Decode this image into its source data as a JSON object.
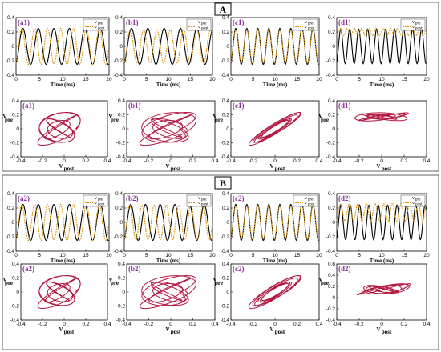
{
  "colors": {
    "pre": "#000000",
    "post": "#e0960b",
    "phase": "#b3173f",
    "panel_label": "#8a2f9e"
  },
  "sections": [
    {
      "id": "A",
      "label": "A"
    },
    {
      "id": "B",
      "label": "B"
    }
  ],
  "chart_data": [
    {
      "id": "a1-time",
      "type": "line",
      "panel_label": "(a1)",
      "xlabel": "Time (ms)",
      "xlim": [
        0,
        20
      ],
      "ylim": [
        -0.4,
        0.4
      ],
      "xticks": [
        "0",
        "5",
        "10",
        "15",
        "20"
      ],
      "yticks": [
        "0.4",
        "0.2",
        "0",
        "-0.2",
        "-0.4"
      ],
      "legend": [
        "V",
        "V"
      ],
      "legend_subscripts": [
        "pre",
        "post"
      ],
      "series": [
        {
          "freq": 0.3,
          "amp": 0.25,
          "offset": 0.0
        },
        {
          "freq": 0.36,
          "amp": 0.25,
          "offset": 0.0
        }
      ]
    },
    {
      "id": "b1-time",
      "type": "line",
      "panel_label": "(b1)",
      "xlabel": "Time (ms)",
      "xlim": [
        0,
        20
      ],
      "ylim": [
        -0.4,
        0.4
      ],
      "xticks": [
        "0",
        "5",
        "10",
        "15",
        "20"
      ],
      "yticks": [
        "0.4",
        "0.2",
        "0",
        "-0.2",
        "-0.4"
      ],
      "legend": [
        "V",
        "V"
      ],
      "legend_subscripts": [
        "pre",
        "post"
      ],
      "series": [
        {
          "freq": 0.27,
          "amp": 0.25,
          "offset": 0.0
        },
        {
          "freq": 0.33,
          "amp": 0.23,
          "offset": 0.0
        }
      ]
    },
    {
      "id": "c1-time",
      "type": "line",
      "panel_label": "(c1)",
      "xlabel": "Time (ms)",
      "xlim": [
        0,
        20
      ],
      "ylim": [
        -0.4,
        0.4
      ],
      "xticks": [
        "0",
        "5",
        "10",
        "15",
        "20"
      ],
      "yticks": [
        "0.4",
        "0.2",
        "0",
        "-0.2",
        "-0.4"
      ],
      "legend": [
        "V",
        "V"
      ],
      "legend_subscripts": [
        "pre",
        "post"
      ],
      "series": [
        {
          "freq": 0.4,
          "amp": 0.25,
          "offset": 0.0
        },
        {
          "freq": 0.4,
          "amp": 0.23,
          "offset": 0.0
        }
      ]
    },
    {
      "id": "d1-time",
      "type": "line",
      "panel_label": "(d1)",
      "xlabel": "Time (ms)",
      "xlim": [
        0,
        20
      ],
      "ylim": [
        -0.4,
        0.4
      ],
      "xticks": [
        "0",
        "5",
        "10",
        "15",
        "20"
      ],
      "yticks": [
        "0.4",
        "0.2",
        "0",
        "-0.2",
        "-0.4"
      ],
      "legend": [
        "V",
        "V"
      ],
      "legend_subscripts": [
        "pre",
        "post"
      ],
      "series": [
        {
          "freq": 0.5,
          "amp": 0.24,
          "offset": 0.0
        },
        {
          "freq": 0.62,
          "amp": 0.05,
          "offset": 0.2
        }
      ]
    },
    {
      "id": "a1-phase",
      "type": "line",
      "panel_label": "(a1)",
      "xlabel": "V",
      "xlabel_sub": "post",
      "ylabel": "V",
      "ylabel_sub": "pre",
      "xlim": [
        -0.4,
        0.4
      ],
      "ylim": [
        -0.4,
        0.4
      ],
      "xticks": [
        "-0.4",
        "-0.2",
        "0",
        "0.2",
        "0.4"
      ],
      "yticks": [
        "0.4",
        "0.2",
        "0",
        "-0.2",
        "-0.4"
      ],
      "curve": {
        "ax": 0.2,
        "ay": 0.24,
        "fx": 1.2,
        "fy": 1.0,
        "ph": 0.9,
        "cx": -0.05,
        "cy": 0.0,
        "turns": 6
      }
    },
    {
      "id": "b1-phase",
      "type": "line",
      "panel_label": "(b1)",
      "xlabel": "V",
      "xlabel_sub": "post",
      "ylabel": "V",
      "ylabel_sub": "pre",
      "xlim": [
        -0.4,
        0.4
      ],
      "ylim": [
        -0.4,
        0.4
      ],
      "xticks": [
        "-0.4",
        "-0.2",
        "0",
        "0.2",
        "0.4"
      ],
      "yticks": [
        "0.4",
        "0.2",
        "0",
        "-0.2",
        "-0.4"
      ],
      "curve": {
        "ax": 0.26,
        "ay": 0.24,
        "fx": 1.22,
        "fy": 1.0,
        "ph": 0.5,
        "cx": -0.03,
        "cy": 0.0,
        "turns": 6
      }
    },
    {
      "id": "c1-phase",
      "type": "line",
      "panel_label": "(c1)",
      "xlabel": "V",
      "xlabel_sub": "post",
      "ylabel": "V",
      "ylabel_sub": "pre",
      "xlim": [
        -0.4,
        0.4
      ],
      "ylim": [
        -0.4,
        0.4
      ],
      "xticks": [
        "-0.4",
        "-0.2",
        "0",
        "0.2",
        "0.4"
      ],
      "yticks": [
        "0.4",
        "0.2",
        "0",
        "-0.2",
        "-0.4"
      ],
      "curve": {
        "ax": 0.24,
        "ay": 0.24,
        "fx": 1.0,
        "fy": 1.0,
        "ph": 0.35,
        "cx": 0.0,
        "cy": 0.0,
        "turns": 6
      }
    },
    {
      "id": "d1-phase",
      "type": "line",
      "panel_label": "(d1)",
      "xlabel": "V",
      "xlabel_sub": "post",
      "ylabel": "V",
      "ylabel_sub": "pre",
      "xlim": [
        -0.4,
        0.4
      ],
      "ylim": [
        -0.4,
        0.4
      ],
      "xticks": [
        "-0.4",
        "-0.2",
        "0",
        "0.2",
        "0.4"
      ],
      "yticks": [
        "0.4",
        "0.2",
        "0",
        "-0.2",
        "-0.4"
      ],
      "curve": {
        "ax": 0.24,
        "ay": 0.06,
        "fx": 1.0,
        "fy": 1.25,
        "ph": 0.7,
        "cx": 0.0,
        "cy": 0.17,
        "turns": 6
      }
    },
    {
      "id": "a2-time",
      "type": "line",
      "panel_label": "(a2)",
      "xlabel": "Time (ms)",
      "xlim": [
        0,
        20
      ],
      "ylim": [
        -0.4,
        0.4
      ],
      "xticks": [
        "0",
        "5",
        "10",
        "15",
        "20"
      ],
      "yticks": [
        "0.4",
        "0.2",
        "0",
        "-0.2",
        "-0.4"
      ],
      "legend": [
        "V",
        "V"
      ],
      "legend_subscripts": [
        "pre",
        "post"
      ],
      "series": [
        {
          "freq": 0.3,
          "amp": 0.25,
          "offset": 0.0
        },
        {
          "freq": 0.36,
          "amp": 0.25,
          "offset": 0.0
        }
      ]
    },
    {
      "id": "b2-time",
      "type": "line",
      "panel_label": "(b2)",
      "xlabel": "Time (ms)",
      "xlim": [
        0,
        20
      ],
      "ylim": [
        -0.4,
        0.4
      ],
      "xticks": [
        "0",
        "5",
        "10",
        "15",
        "20"
      ],
      "yticks": [
        "0.4",
        "0.2",
        "0",
        "-0.2",
        "-0.4"
      ],
      "legend": [
        "V",
        "V"
      ],
      "legend_subscripts": [
        "pre",
        "post"
      ],
      "series": [
        {
          "freq": 0.3,
          "amp": 0.25,
          "offset": 0.0
        },
        {
          "freq": 0.36,
          "amp": 0.24,
          "offset": 0.0
        }
      ]
    },
    {
      "id": "c2-time",
      "type": "line",
      "panel_label": "(c2)",
      "xlabel": "Time (ms)",
      "xlim": [
        0,
        20
      ],
      "ylim": [
        -0.4,
        0.4
      ],
      "xticks": [
        "0",
        "5",
        "10",
        "15",
        "20"
      ],
      "yticks": [
        "0.4",
        "0.2",
        "0",
        "-0.2",
        "-0.4"
      ],
      "legend": [
        "V",
        "V"
      ],
      "legend_subscripts": [
        "pre",
        "post"
      ],
      "series": [
        {
          "freq": 0.4,
          "amp": 0.25,
          "offset": 0.0
        },
        {
          "freq": 0.4,
          "amp": 0.23,
          "offset": 0.0
        }
      ]
    },
    {
      "id": "d2-time",
      "type": "line",
      "panel_label": "(d2)",
      "xlabel": "Time (ms)",
      "xlim": [
        0,
        20
      ],
      "ylim": [
        -0.4,
        0.4
      ],
      "xticks": [
        "0",
        "5",
        "10",
        "15",
        "20"
      ],
      "yticks": [
        "0.4",
        "0.2",
        "0",
        "-0.2",
        "-0.4"
      ],
      "legend": [
        "V",
        "V"
      ],
      "legend_subscripts": [
        "pre",
        "post"
      ],
      "series": [
        {
          "freq": 0.48,
          "amp": 0.24,
          "offset": 0.0
        },
        {
          "freq": 0.52,
          "amp": 0.12,
          "offset": 0.14
        }
      ]
    },
    {
      "id": "a2-phase",
      "type": "line",
      "panel_label": "(a2)",
      "xlabel": "V",
      "xlabel_sub": "post",
      "ylabel": "V",
      "ylabel_sub": "pre",
      "xlim": [
        -0.4,
        0.4
      ],
      "ylim": [
        -0.4,
        0.4
      ],
      "xticks": [
        "-0.4",
        "-0.2",
        "0",
        "0.2",
        "0.4"
      ],
      "yticks": [
        "0.4",
        "0.2",
        "0",
        "-0.2",
        "-0.4"
      ],
      "curve": {
        "ax": 0.2,
        "ay": 0.24,
        "fx": 1.2,
        "fy": 1.0,
        "ph": 0.9,
        "cx": -0.05,
        "cy": 0.0,
        "turns": 6
      }
    },
    {
      "id": "b2-phase",
      "type": "line",
      "panel_label": "(b2)",
      "xlabel": "V",
      "xlabel_sub": "post",
      "ylabel": "V",
      "ylabel_sub": "pre",
      "xlim": [
        -0.4,
        0.4
      ],
      "ylim": [
        -0.4,
        0.4
      ],
      "xticks": [
        "-0.4",
        "-0.2",
        "0",
        "0.2",
        "0.4"
      ],
      "yticks": [
        "0.4",
        "0.2",
        "0",
        "-0.2",
        "-0.4"
      ],
      "curve": {
        "ax": 0.26,
        "ay": 0.24,
        "fx": 1.22,
        "fy": 1.0,
        "ph": 0.5,
        "cx": -0.03,
        "cy": 0.0,
        "turns": 6
      }
    },
    {
      "id": "c2-phase",
      "type": "line",
      "panel_label": "(c2)",
      "xlabel": "V",
      "xlabel_sub": "post",
      "ylabel": "V",
      "ylabel_sub": "pre",
      "xlim": [
        -0.4,
        0.4
      ],
      "ylim": [
        -0.4,
        0.4
      ],
      "xticks": [
        "-0.4",
        "-0.2",
        "0",
        "0.2",
        "0.4"
      ],
      "yticks": [
        "0.4",
        "0.2",
        "0",
        "-0.2",
        "-0.4"
      ],
      "curve": {
        "ax": 0.24,
        "ay": 0.24,
        "fx": 1.0,
        "fy": 1.0,
        "ph": 0.45,
        "cx": 0.0,
        "cy": 0.0,
        "turns": 6
      }
    },
    {
      "id": "d2-phase",
      "type": "line",
      "panel_label": "(d2)",
      "xlabel": "V",
      "xlabel_sub": "post",
      "ylabel": "V",
      "ylabel_sub": "pre",
      "xlim": [
        -0.4,
        0.4
      ],
      "ylim": [
        -0.4,
        0.6
      ],
      "xticks": [
        "-0.4",
        "-0.2",
        "0",
        "0.2",
        "0.4"
      ],
      "yticks": [
        "0.6",
        "0.4",
        "0.2",
        "0",
        "-0.2",
        "-0.4"
      ],
      "curve": {
        "ax": 0.24,
        "ay": 0.1,
        "fx": 1.0,
        "fy": 1.3,
        "ph": 0.7,
        "cx": 0.02,
        "cy": 0.15,
        "turns": 6
      }
    }
  ]
}
